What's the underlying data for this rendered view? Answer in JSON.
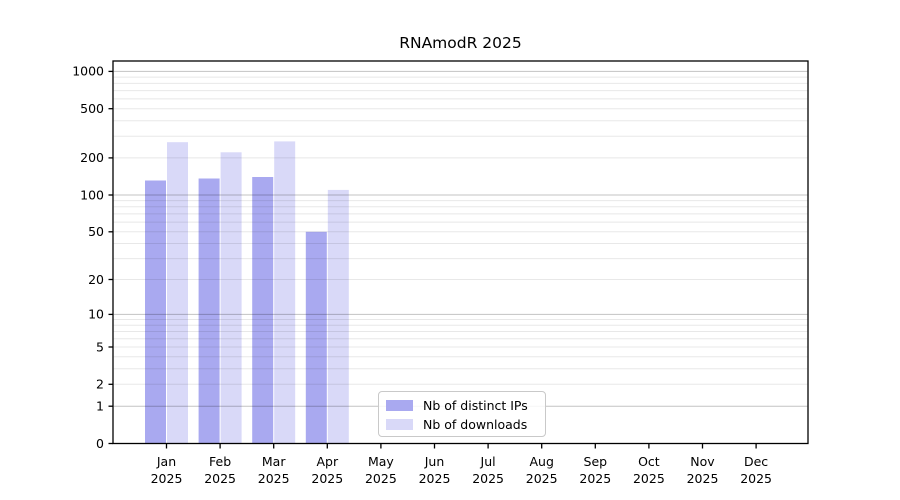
{
  "chart_data": {
    "type": "bar",
    "title": "RNAmodR 2025",
    "categories": [
      "Jan",
      "Feb",
      "Mar",
      "Apr",
      "May",
      "Jun",
      "Jul",
      "Aug",
      "Sep",
      "Oct",
      "Nov",
      "Dec"
    ],
    "x_tick_second_line": "2025",
    "series": [
      {
        "id": "distinct-ips",
        "name": "Nb of distinct IPs",
        "color": "#a9a9f0",
        "values": [
          131,
          136,
          140,
          50,
          0,
          0,
          0,
          0,
          0,
          0,
          0,
          0
        ]
      },
      {
        "id": "downloads",
        "name": "Nb of downloads",
        "color": "#d9d9f8",
        "values": [
          268,
          222,
          272,
          110,
          0,
          0,
          0,
          0,
          0,
          0,
          0,
          0
        ]
      }
    ],
    "yticks": [
      0,
      1,
      2,
      5,
      10,
      20,
      50,
      100,
      200,
      500,
      1000
    ],
    "yscale": "log10(value+1)",
    "ylim": [
      0,
      1200
    ],
    "grid": true,
    "legend": {
      "position": "bottom-center",
      "labels": [
        "Nb of distinct IPs",
        "Nb of downloads"
      ]
    },
    "colors": {
      "major_gridline": "#c3c3c3",
      "minor_gridline": "#e8e8e8",
      "axis": "#000000",
      "background": "#ffffff"
    }
  }
}
